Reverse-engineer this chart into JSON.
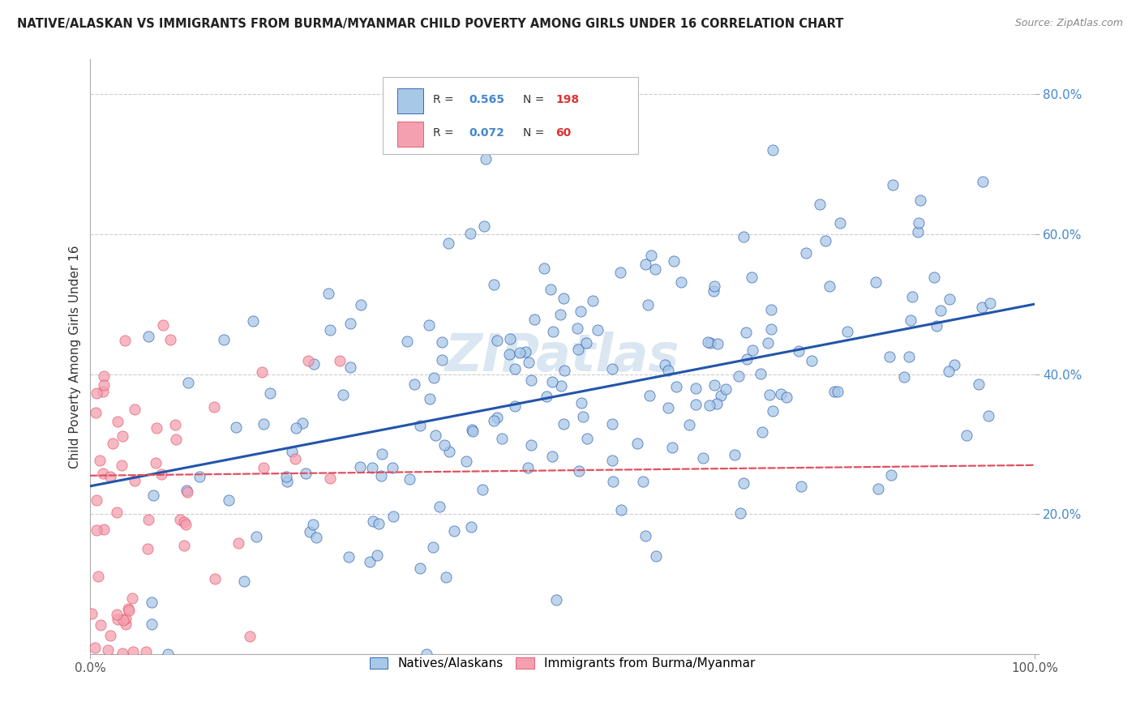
{
  "title": "NATIVE/ALASKAN VS IMMIGRANTS FROM BURMA/MYANMAR CHILD POVERTY AMONG GIRLS UNDER 16 CORRELATION CHART",
  "source": "Source: ZipAtlas.com",
  "ylabel": "Child Poverty Among Girls Under 16",
  "xlim": [
    0,
    1.0
  ],
  "ylim": [
    0,
    0.85
  ],
  "ytick_values": [
    0.2,
    0.4,
    0.6,
    0.8
  ],
  "ytick_labels": [
    "20.0%",
    "40.0%",
    "60.0%",
    "80.0%"
  ],
  "xtick_values": [
    0.0,
    1.0
  ],
  "xtick_labels": [
    "0.0%",
    "100.0%"
  ],
  "legend_R1": "0.565",
  "legend_N1": "198",
  "legend_R2": "0.072",
  "legend_N2": "60",
  "color_blue": "#a8c8e8",
  "color_pink": "#f4a0b0",
  "line_color_blue": "#2255aa",
  "line_color_pink": "#e05060",
  "watermark": "ZIPatlas",
  "background_color": "#ffffff",
  "grid_color": "#cccccc",
  "blue_line_start_y": 0.24,
  "blue_line_end_y": 0.5,
  "pink_line_start_y": 0.255,
  "pink_line_end_y": 0.27,
  "seed": 17
}
